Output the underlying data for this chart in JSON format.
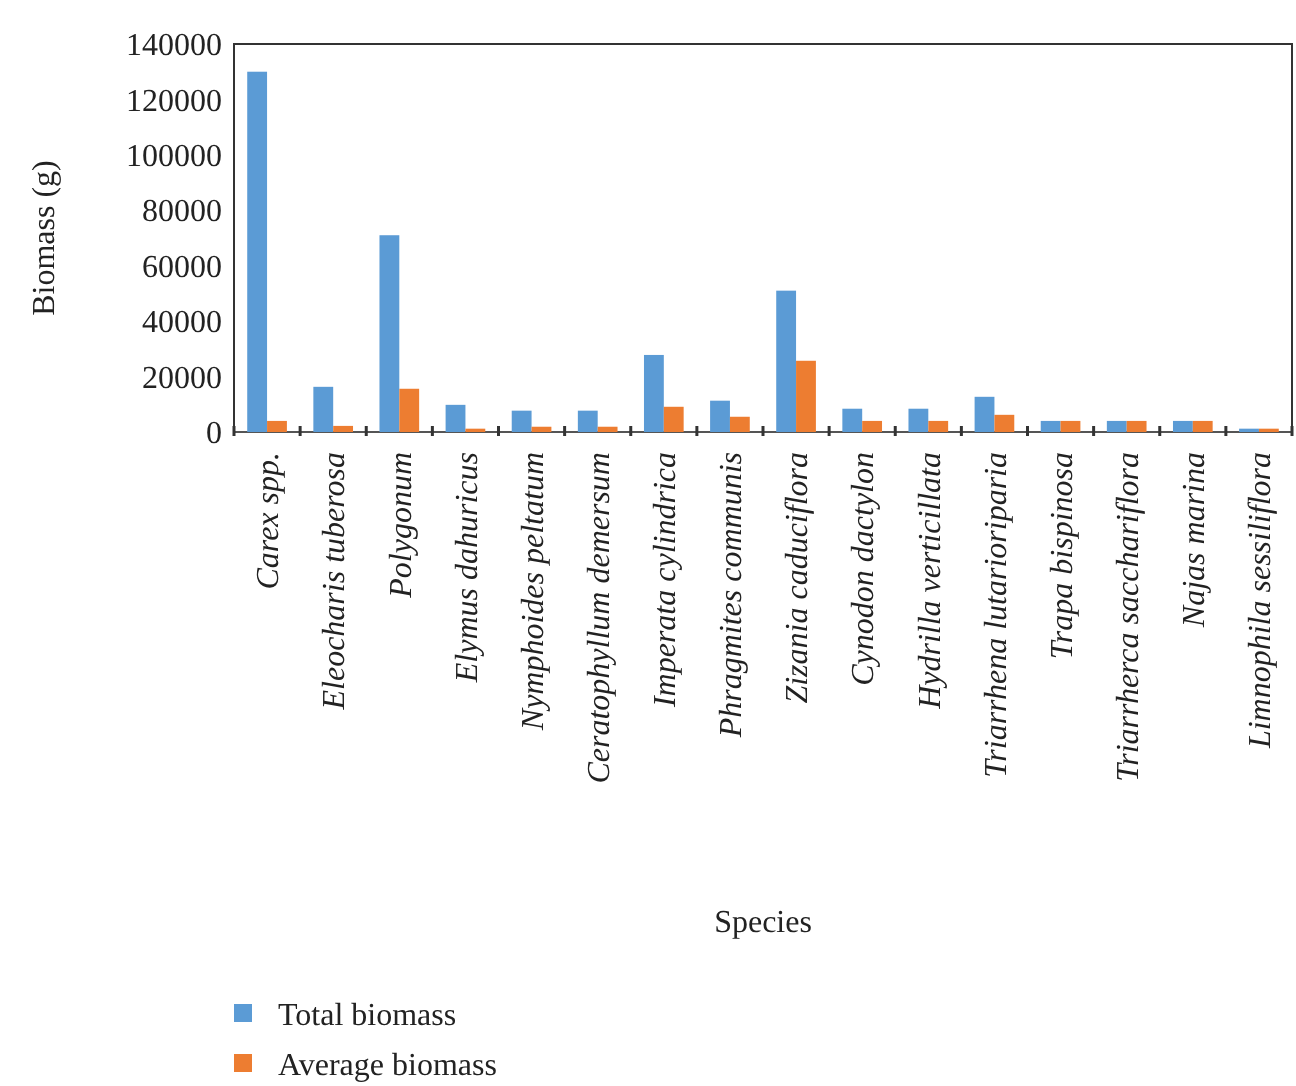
{
  "chart_data": {
    "type": "bar",
    "xlabel": "Species",
    "ylabel": "Biomass (g)",
    "categories": [
      "Carex spp.",
      "Eleocharis tuberosa",
      "Polygonum",
      "Elymus dahuricus",
      "Nymphoides peltatum",
      "Ceratophyllum demersum",
      "Imperata cylindrica",
      "Phragmites communis",
      "Zizania caduciflora",
      "Cynodon dactylon",
      "Hydrilla verticillata",
      "Triarrhena lutarioriparia",
      "Trapa bispinosa",
      "Triarrherca sacchariflora",
      "Najas marina",
      "Limnophila sessiliflora"
    ],
    "series": [
      {
        "name": "Total biomass",
        "color": "#5b9bd5",
        "values": [
          130000,
          16300,
          71000,
          9800,
          7700,
          7700,
          27800,
          11300,
          51000,
          8400,
          8400,
          12700,
          4000,
          4000,
          4000,
          1200
        ]
      },
      {
        "name": "Average biomass",
        "color": "#ed7d31",
        "values": [
          4000,
          2200,
          15600,
          1200,
          1900,
          1900,
          9100,
          5500,
          25700,
          4000,
          4000,
          6200,
          4000,
          4000,
          4000,
          1200
        ]
      }
    ],
    "ylim": [
      0,
      140000
    ],
    "yticks": [
      0,
      20000,
      40000,
      60000,
      80000,
      100000,
      120000,
      140000
    ],
    "grid": false,
    "legend": "bottom left"
  }
}
